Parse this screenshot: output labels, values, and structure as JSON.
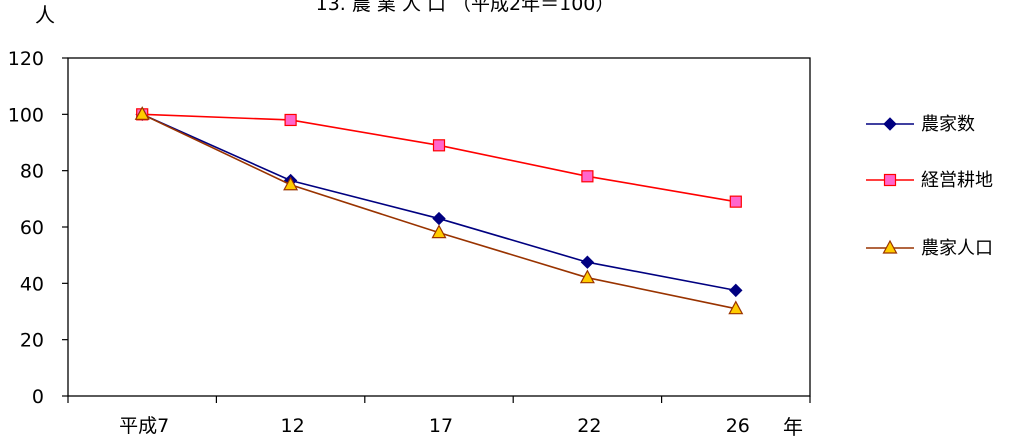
{
  "chart_data": {
    "type": "line",
    "title": "13. 農 業 人 口 （平成2年＝100）",
    "ylabel": "人",
    "xlabel": "年",
    "categories": [
      "平成7",
      "12",
      "17",
      "22",
      "26"
    ],
    "ylim": [
      0,
      120
    ],
    "yticks": [
      0,
      20,
      40,
      60,
      80,
      100,
      120
    ],
    "grid": false,
    "legend_position": "right",
    "series": [
      {
        "name": "農家数",
        "values": [
          100,
          76.5,
          63,
          47.5,
          37.5
        ],
        "color": "#000080",
        "marker": "diamond"
      },
      {
        "name": "経営耕地",
        "values": [
          100,
          98,
          89,
          78,
          69
        ],
        "color": "#ff0000",
        "marker": "square",
        "marker_fill": "#ff66cc"
      },
      {
        "name": "農家人口",
        "values": [
          100,
          75,
          58,
          42,
          31
        ],
        "color": "#993300",
        "marker": "triangle",
        "marker_fill": "#ffcc00"
      }
    ]
  }
}
